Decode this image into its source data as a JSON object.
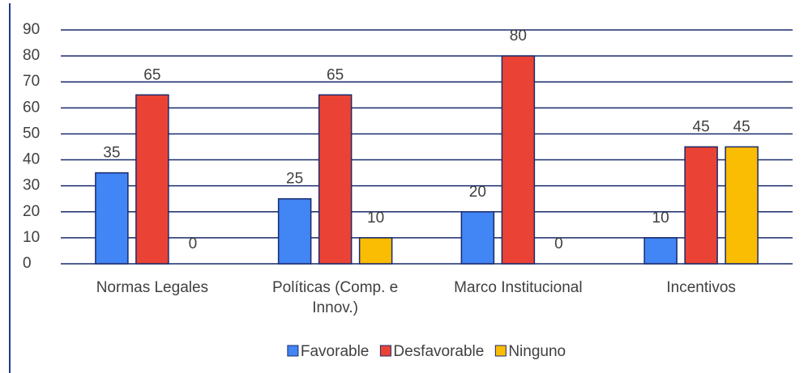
{
  "chart_data": {
    "type": "bar",
    "categories": [
      "Normas Legales",
      "Políticas (Comp. e Innov.)",
      "Marco Institucional",
      "Incentivos"
    ],
    "series": [
      {
        "name": "Favorable",
        "color": "#4285f4",
        "values": [
          35,
          25,
          20,
          10
        ]
      },
      {
        "name": "Desfavorable",
        "color": "#ea4335",
        "values": [
          65,
          65,
          80,
          45
        ]
      },
      {
        "name": "Ninguno",
        "color": "#fbbc04",
        "values": [
          0,
          10,
          0,
          45
        ]
      }
    ],
    "ylim": [
      0,
      90
    ],
    "yticks": [
      0,
      10,
      20,
      30,
      40,
      50,
      60,
      70,
      80,
      90
    ],
    "grid": true,
    "legend": "bottom"
  }
}
